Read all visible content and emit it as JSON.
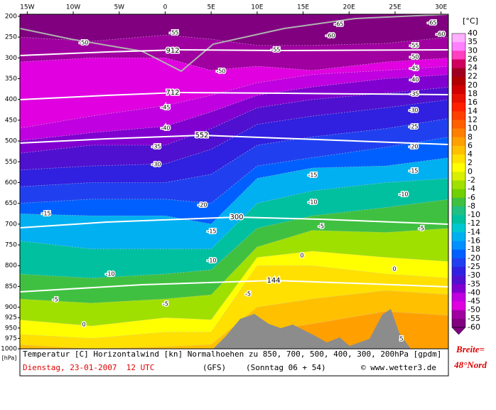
{
  "chart_data": {
    "type": "cross-section",
    "xticks": [
      {
        "value": -15,
        "label": "15W"
      },
      {
        "value": -10,
        "label": "10W"
      },
      {
        "value": -5,
        "label": "5W"
      },
      0,
      {
        "value": 5,
        "label": "5E"
      },
      {
        "value": 10,
        "label": "10E"
      },
      {
        "value": 15,
        "label": "15E"
      },
      {
        "value": 20,
        "label": "20E"
      },
      {
        "value": 25,
        "label": "25E"
      },
      {
        "value": 30,
        "label": "30E"
      }
    ],
    "xlim": [
      -15.8,
      30.8
    ],
    "yticks": [
      200,
      250,
      300,
      350,
      400,
      450,
      500,
      550,
      600,
      650,
      700,
      750,
      800,
      850,
      900,
      925,
      950,
      975,
      1000
    ],
    "ylim": [
      195,
      1000
    ],
    "y_unit": "[hPa]",
    "colorbar_title": "[°C]",
    "levels": [
      40,
      35,
      30,
      26,
      24,
      22,
      20,
      18,
      16,
      14,
      12,
      10,
      8,
      6,
      4,
      2,
      0,
      -2,
      -4,
      -6,
      -8,
      -10,
      -12,
      -14,
      -16,
      -18,
      -20,
      -25,
      -30,
      -35,
      -40,
      -45,
      -50,
      -55,
      -60
    ],
    "colors": [
      "#ffb0ff",
      "#ff80ff",
      "#ff40c0",
      "#d00060",
      "#a00020",
      "#b00000",
      "#d00000",
      "#e81000",
      "#ff2000",
      "#ff4000",
      "#ff6000",
      "#ff8000",
      "#ffa000",
      "#ffc000",
      "#ffe000",
      "#ffff00",
      "#d8f000",
      "#a0e000",
      "#70d000",
      "#40c040",
      "#20c080",
      "#00c0a0",
      "#00c8d0",
      "#00b0f0",
      "#0090ff",
      "#0060ff",
      "#2040f0",
      "#3020e0",
      "#5010d0",
      "#8000d0",
      "#c000e0",
      "#e000e0",
      "#a000a0",
      "#800080"
    ],
    "isotherms": [
      {
        "value": -55,
        "lon": [
          -16,
          -8,
          0,
          5,
          10,
          16,
          24,
          31
        ],
        "p": [
          250,
          260,
          245,
          255,
          270,
          270,
          265,
          250
        ]
      },
      {
        "value": -50,
        "lon": [
          -16,
          -8,
          0,
          5,
          10,
          16,
          24,
          31
        ],
        "p": [
          310,
          300,
          300,
          330,
          320,
          330,
          310,
          300
        ]
      },
      {
        "value": -45,
        "lon": [
          -16,
          -8,
          0,
          5,
          10,
          16,
          24,
          31
        ],
        "p": [
          470,
          440,
          415,
          390,
          360,
          340,
          330,
          320
        ]
      },
      {
        "value": -40,
        "lon": [
          -16,
          -8,
          0,
          5,
          10,
          16,
          24,
          31
        ],
        "p": [
          500,
          480,
          465,
          430,
          390,
          370,
          350,
          340
        ]
      },
      {
        "value": -35,
        "lon": [
          -16,
          -8,
          0,
          5,
          10,
          16,
          24,
          31
        ],
        "p": [
          530,
          510,
          510,
          470,
          420,
          400,
          385,
          370
        ]
      },
      {
        "value": -30,
        "lon": [
          -16,
          -8,
          0,
          5,
          10,
          16,
          24,
          31
        ],
        "p": [
          570,
          560,
          555,
          520,
          460,
          440,
          420,
          400
        ]
      },
      {
        "value": -25,
        "lon": [
          -16,
          -8,
          0,
          5,
          10,
          16,
          24,
          31
        ],
        "p": [
          610,
          600,
          600,
          580,
          510,
          490,
          470,
          445
        ]
      },
      {
        "value": -20,
        "lon": [
          -16,
          -8,
          0,
          5,
          10,
          16,
          24,
          31
        ],
        "p": [
          650,
          640,
          640,
          650,
          560,
          540,
          515,
          490
        ]
      },
      {
        "value": -16,
        "lon": [
          -16,
          -8,
          0,
          5,
          10,
          16,
          24,
          31
        ],
        "p": [
          675,
          680,
          680,
          700,
          590,
          565,
          560,
          540
        ]
      },
      {
        "value": -12,
        "lon": [
          -16,
          -8,
          0,
          5,
          10,
          16,
          24,
          31
        ],
        "p": [
          740,
          760,
          760,
          760,
          650,
          620,
          600,
          590
        ]
      },
      {
        "value": -8,
        "lon": [
          -16,
          -8,
          0,
          5,
          10,
          16,
          24,
          31
        ],
        "p": [
          820,
          830,
          820,
          810,
          710,
          680,
          660,
          640
        ]
      },
      {
        "value": -4,
        "lon": [
          -16,
          -8,
          0,
          5,
          10,
          16,
          24,
          31
        ],
        "p": [
          880,
          890,
          880,
          870,
          755,
          715,
          720,
          710
        ]
      },
      {
        "value": 0,
        "lon": [
          -16,
          -8,
          0,
          5,
          10,
          16,
          24,
          31
        ],
        "p": [
          930,
          945,
          925,
          930,
          780,
          765,
          780,
          790
        ]
      },
      {
        "value": 2,
        "lon": [
          -16,
          -8,
          0,
          5,
          10,
          16,
          24,
          31
        ],
        "p": [
          965,
          975,
          960,
          960,
          800,
          800,
          820,
          830
        ]
      },
      {
        "value": 4,
        "lon": [
          -16,
          -8,
          0,
          5,
          10,
          16,
          24,
          31
        ],
        "p": [
          990,
          1000,
          995,
          990,
          900,
          880,
          860,
          870
        ]
      },
      {
        "value": 6,
        "lon": [
          -16,
          -8,
          0,
          5,
          10,
          16,
          24,
          31
        ],
        "p": [
          1010,
          1010,
          1010,
          1010,
          960,
          940,
          910,
          920
        ]
      }
    ],
    "contour_labels": [
      "-65",
      "-65",
      "-60",
      "-60",
      "-55",
      "-50",
      "-55",
      "-55",
      "-50",
      "-45",
      "-50",
      "-40",
      "-35",
      "-30",
      "-45",
      "-40",
      "-25",
      "-35",
      "-20",
      "-30",
      "-15",
      "-15",
      "-10",
      "-20",
      "-10",
      "-15",
      "-15",
      "-5",
      "-5",
      "-10",
      "0",
      "0",
      "-10",
      "-5",
      "-5",
      "-5",
      "0",
      "5"
    ],
    "height_labels": [
      "912",
      "712",
      "552",
      "300",
      "144"
    ],
    "caption": "Temperatur [C] Horizontalwind [kn] Normalhoehen zu 850, 700, 500, 400, 300, 200hPa [gpdm]",
    "date": "Dienstag, 23-01-2007  12 UTC",
    "model": "(GFS)",
    "run": "(Sonntag 06 + 54)",
    "credit": "© www.wetter3.de",
    "latitude_label": "Breite=",
    "latitude": "48°Nord"
  }
}
